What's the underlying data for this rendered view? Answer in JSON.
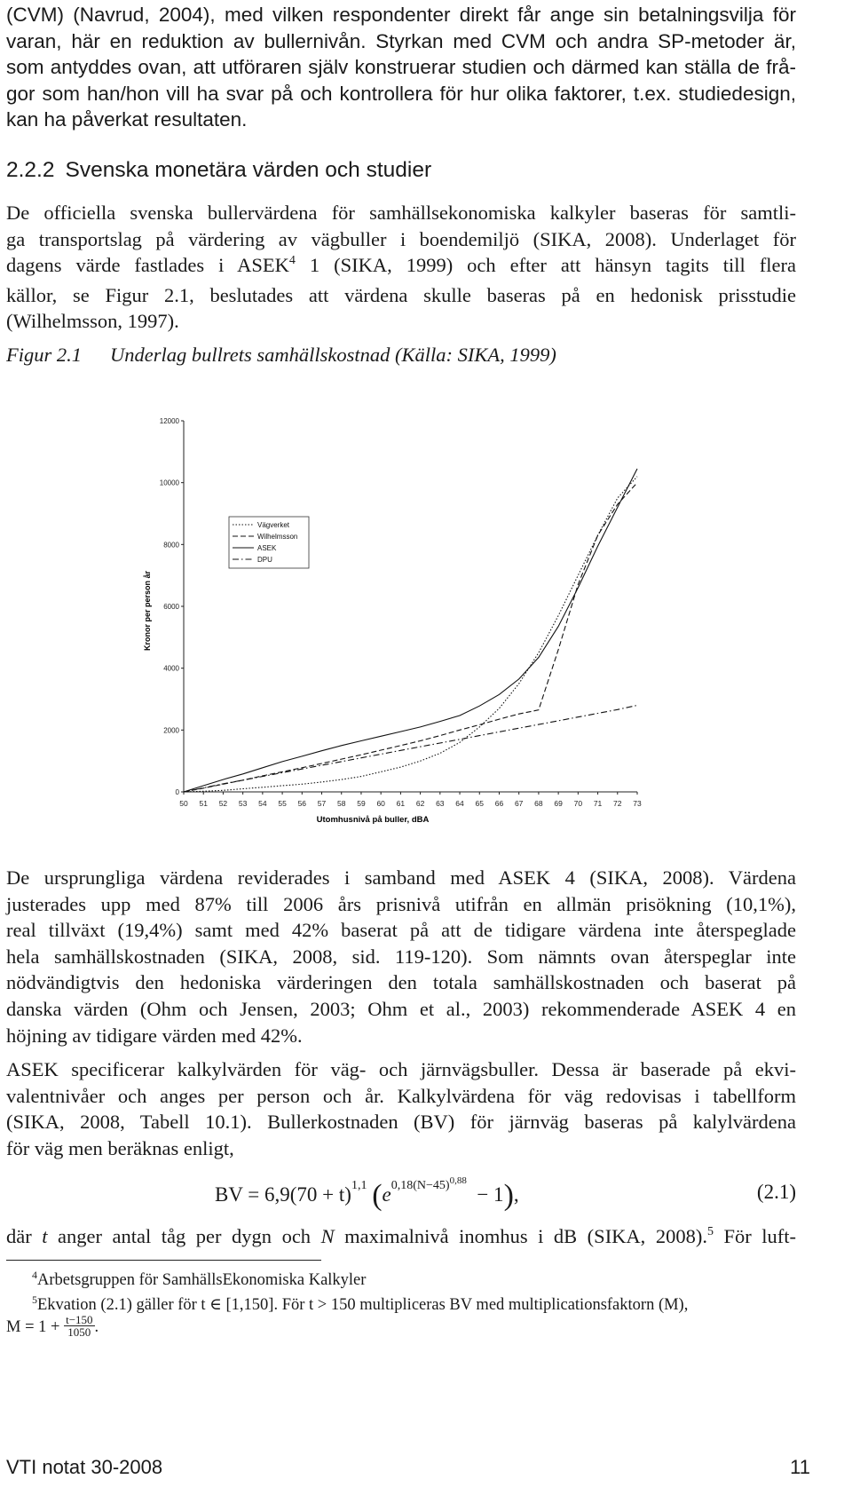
{
  "intro_lines": [
    "(CVM) (Navrud, 2004), med vilken respondenter direkt får ange sin betalningsvilja för",
    "varan, här en reduktion av bullernivån. Styrkan med CVM och andra SP-metoder är,",
    "som antyddes ovan, att utföraren själv konstruerar studien och därmed kan ställa de frå-",
    "gor som han/hon vill ha svar på och kontrollera för hur olika faktorer, t.ex. studiedesign,",
    "kan ha påverkat resultaten."
  ],
  "section": {
    "number": "2.2.2",
    "title": "Svenska monetära värden och studier"
  },
  "para1": {
    "line1": "De officiella svenska bullervärdena för samhällsekonomiska kalkyler baseras för samtli-",
    "line2": "ga transportslag på värdering av vägbuller i boendemiljö (SIKA, 2008). Underlaget för",
    "line3_pre": "dagens värde fastlades i ASEK",
    "line3_sup": "4",
    "line3_post": " 1 (SIKA, 1999) och efter att hänsyn tagits till flera",
    "line4": "källor, se Figur 2.1, beslutades att värdena skulle baseras på en hedonisk prisstudie",
    "line5": "(Wilhelmsson, 1997)."
  },
  "figure": {
    "label": "Figur 2.1",
    "caption": "Underlag bullrets samhällskostnad (Källa: SIKA, 1999)"
  },
  "chart_data": {
    "type": "line",
    "title": "",
    "xlabel": "Utomhusnivå på buller, dBA",
    "ylabel": "Kronor per person år",
    "x": [
      50,
      51,
      52,
      53,
      54,
      55,
      56,
      57,
      58,
      59,
      60,
      61,
      62,
      63,
      64,
      65,
      66,
      67,
      68,
      69,
      70,
      71,
      72,
      73
    ],
    "xlim": [
      50,
      73
    ],
    "ylim": [
      0,
      12000
    ],
    "yticks": [
      0,
      2000,
      4000,
      6000,
      8000,
      10000,
      12000
    ],
    "grid": false,
    "legend_position": "top-left",
    "series": [
      {
        "name": "Vägverket",
        "style": "dotted",
        "values": [
          0,
          20,
          50,
          100,
          150,
          200,
          250,
          320,
          400,
          500,
          650,
          800,
          1000,
          1250,
          1600,
          2100,
          2700,
          3500,
          4500,
          5700,
          7000,
          8300,
          9500,
          10200
        ]
      },
      {
        "name": "Wilhelmsson",
        "style": "dashed",
        "values": [
          0,
          120,
          250,
          380,
          520,
          650,
          780,
          920,
          1060,
          1200,
          1350,
          1500,
          1650,
          1820,
          2000,
          2170,
          2350,
          2520,
          2650,
          4600,
          6700,
          8300,
          9300,
          10000
        ]
      },
      {
        "name": "ASEK",
        "style": "solid",
        "values": [
          0,
          200,
          400,
          580,
          780,
          980,
          1150,
          1330,
          1500,
          1650,
          1800,
          1950,
          2100,
          2280,
          2470,
          2780,
          3150,
          3650,
          4350,
          5350,
          6600,
          7950,
          9200,
          10450
        ]
      },
      {
        "name": "DPU",
        "style": "dash-dot",
        "values": [
          0,
          130,
          260,
          380,
          500,
          620,
          740,
          860,
          980,
          1100,
          1220,
          1340,
          1460,
          1580,
          1700,
          1820,
          1940,
          2060,
          2180,
          2300,
          2420,
          2540,
          2660,
          2800
        ]
      }
    ]
  },
  "para2_lines": [
    "De ursprungliga värdena reviderades i samband med ASEK 4 (SIKA, 2008). Värdena",
    "justerades upp med 87% till 2006 års prisnivå utifrån en allmän prisökning (10,1%),",
    "real tillväxt (19,4%) samt med 42% baserat på att de tidigare värdena inte återspeglade",
    "hela samhällskostnaden (SIKA, 2008, sid. 119-120). Som nämnts ovan återspeglar inte",
    "nödvändigtvis den hedoniska värderingen den totala samhällskostnaden och baserat på",
    "danska värden (Ohm och Jensen, 2003; Ohm et al., 2003) rekommenderade ASEK 4 en",
    "höjning av tidigare värden med 42%."
  ],
  "para3_lines": [
    "ASEK specificerar kalkylvärden för väg- och järnvägsbuller. Dessa är baserade på ekvi-",
    "valentnivåer och anges per person och år. Kalkylvärdena för väg redovisas i tabellform",
    "(SIKA, 2008, Tabell 10.1). Bullerkostnaden (BV) för järnväg baseras på kalylvärdena",
    "för väg men beräknas enligt,"
  ],
  "equation": {
    "lhs": "BV = 6,9(70 + t)",
    "exp1": "1,1",
    "open_paren": "(",
    "base": "e",
    "exp2": "0,18(N−45)",
    "exp3": "0,88",
    "tail": " − 1",
    "close_paren": ")",
    "comma": ",",
    "number": "(2.1)"
  },
  "para4": {
    "pre": "där ",
    "t": "t",
    "mid1": " anger antal tåg per dygn och ",
    "N": "N",
    "mid2": " maximalnivå inomhus i dB (SIKA, 2008).",
    "sup": "5",
    "post": " För luft-"
  },
  "footnotes": {
    "fn4_mark": "4",
    "fn4_text": "Arbetsgruppen för SamhällsEkonomiska Kalkyler",
    "fn5_mark": "5",
    "fn5_text": "Ekvation (2.1) gäller för t ∈ [1,150]. För t > 150 multipliceras BV med multiplicationsfaktorn (M),",
    "fn5_cont_pre": "M = 1 + ",
    "fn5_frac_num": "t−150",
    "fn5_frac_den": "1050",
    "fn5_cont_post": "."
  },
  "footer": {
    "left": "VTI notat 30-2008",
    "right": "11"
  }
}
